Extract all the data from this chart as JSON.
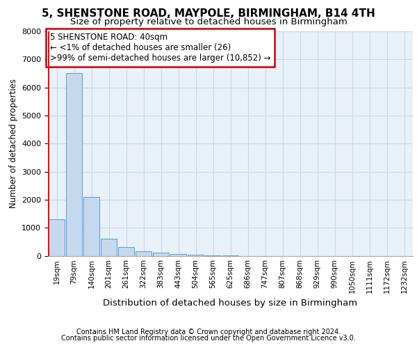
{
  "title1": "5, SHENSTONE ROAD, MAYPOLE, BIRMINGHAM, B14 4TH",
  "title2": "Size of property relative to detached houses in Birmingham",
  "xlabel": "Distribution of detached houses by size in Birmingham",
  "ylabel": "Number of detached properties",
  "footer1": "Contains HM Land Registry data © Crown copyright and database right 2024.",
  "footer2": "Contains public sector information licensed under the Open Government Licence v3.0.",
  "annotation_line1": "5 SHENSTONE ROAD: 40sqm",
  "annotation_line2": "← <1% of detached houses are smaller (26)",
  "annotation_line3": ">99% of semi-detached houses are larger (10,852) →",
  "bar_labels": [
    "19sqm",
    "79sqm",
    "140sqm",
    "201sqm",
    "261sqm",
    "322sqm",
    "383sqm",
    "443sqm",
    "504sqm",
    "565sqm",
    "625sqm",
    "686sqm",
    "747sqm",
    "807sqm",
    "868sqm",
    "929sqm",
    "990sqm",
    "1050sqm",
    "1111sqm",
    "1172sqm",
    "1232sqm"
  ],
  "bar_values": [
    1300,
    6500,
    2100,
    620,
    300,
    170,
    100,
    70,
    30,
    10,
    5,
    0,
    0,
    0,
    0,
    0,
    0,
    0,
    0,
    0,
    0
  ],
  "bar_color": "#c5d8ed",
  "bar_edge_color": "#5b9bd5",
  "red_line_color": "#ff0000",
  "annotation_box_edge_color": "#cc0000",
  "annotation_box_fill": "#ffffff",
  "grid_color": "#c8d8e8",
  "bg_color": "#e8f0f8",
  "ylim": [
    0,
    8000
  ],
  "yticks": [
    0,
    1000,
    2000,
    3000,
    4000,
    5000,
    6000,
    7000,
    8000
  ],
  "title1_fontsize": 11,
  "title2_fontsize": 9.5,
  "ylabel_fontsize": 8.5,
  "xlabel_fontsize": 9.5,
  "footer_fontsize": 7,
  "annot_fontsize": 8.5,
  "tick_fontsize": 8,
  "xtick_fontsize": 7.5
}
